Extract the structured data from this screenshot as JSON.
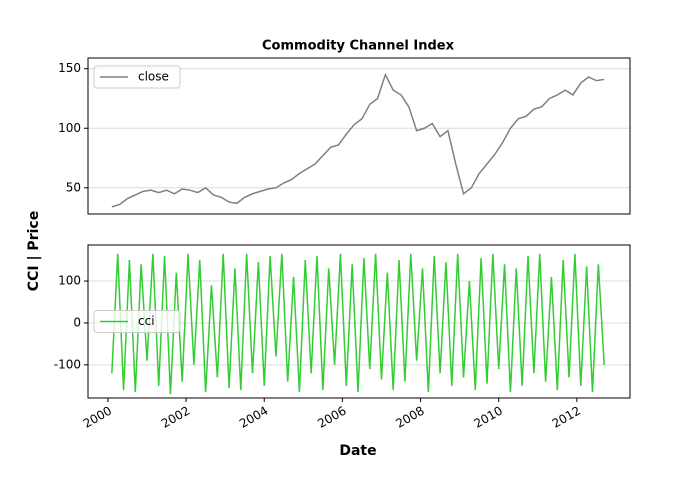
{
  "chart_data": [
    {
      "type": "line",
      "title": "Commodity Channel Index",
      "ylabel": "CCI | Price",
      "x": [
        2000.1,
        2000.3,
        2000.5,
        2000.7,
        2000.9,
        2001.1,
        2001.3,
        2001.5,
        2001.7,
        2001.9,
        2002.1,
        2002.3,
        2002.5,
        2002.7,
        2002.9,
        2003.1,
        2003.3,
        2003.5,
        2003.7,
        2003.9,
        2004.1,
        2004.3,
        2004.5,
        2004.7,
        2004.9,
        2005.1,
        2005.3,
        2005.5,
        2005.7,
        2005.9,
        2006.1,
        2006.3,
        2006.5,
        2006.7,
        2006.9,
        2007.1,
        2007.3,
        2007.5,
        2007.7,
        2007.9,
        2008.1,
        2008.3,
        2008.5,
        2008.7,
        2008.9,
        2009.1,
        2009.3,
        2009.5,
        2009.7,
        2009.9,
        2010.1,
        2010.3,
        2010.5,
        2010.7,
        2010.9,
        2011.1,
        2011.3,
        2011.5,
        2011.7,
        2011.9,
        2012.1,
        2012.3,
        2012.5,
        2012.7
      ],
      "series": [
        {
          "name": "close",
          "color": "#808080",
          "values": [
            34,
            36,
            41,
            44,
            47,
            48,
            46,
            48,
            45,
            49,
            48,
            46,
            50,
            44,
            42,
            38,
            37,
            42,
            45,
            47,
            49,
            50,
            54,
            57,
            62,
            66,
            70,
            77,
            84,
            86,
            95,
            103,
            108,
            120,
            125,
            145,
            132,
            128,
            118,
            98,
            100,
            104,
            93,
            98,
            70,
            45,
            50,
            62,
            70,
            78,
            88,
            100,
            108,
            110,
            116,
            118,
            125,
            128,
            132,
            128,
            138,
            143,
            140,
            141
          ]
        }
      ],
      "xlim": [
        1999.49,
        2013.36
      ],
      "ylim": [
        28,
        159
      ],
      "yticks": [
        50,
        100,
        150
      ],
      "grid": true,
      "legend": "upper left"
    },
    {
      "type": "line",
      "xlabel": "Date",
      "x": [
        2000.1,
        2000.25,
        2000.4,
        2000.55,
        2000.7,
        2000.85,
        2001.0,
        2001.15,
        2001.3,
        2001.45,
        2001.6,
        2001.75,
        2001.9,
        2002.05,
        2002.2,
        2002.35,
        2002.5,
        2002.65,
        2002.8,
        2002.95,
        2003.1,
        2003.25,
        2003.4,
        2003.55,
        2003.7,
        2003.85,
        2004.0,
        2004.15,
        2004.3,
        2004.45,
        2004.6,
        2004.75,
        2004.9,
        2005.05,
        2005.2,
        2005.35,
        2005.5,
        2005.65,
        2005.8,
        2005.95,
        2006.1,
        2006.25,
        2006.4,
        2006.55,
        2006.7,
        2006.85,
        2007.0,
        2007.15,
        2007.3,
        2007.45,
        2007.6,
        2007.75,
        2007.9,
        2008.05,
        2008.2,
        2008.35,
        2008.5,
        2008.65,
        2008.8,
        2008.95,
        2009.1,
        2009.25,
        2009.4,
        2009.55,
        2009.7,
        2009.85,
        2010.0,
        2010.15,
        2010.3,
        2010.45,
        2010.6,
        2010.75,
        2010.9,
        2011.05,
        2011.2,
        2011.35,
        2011.5,
        2011.65,
        2011.8,
        2011.95,
        2012.1,
        2012.25,
        2012.4,
        2012.55,
        2012.7
      ],
      "series": [
        {
          "name": "cci",
          "color": "#32cd32",
          "values": [
            -120,
            165,
            -160,
            150,
            -165,
            140,
            -90,
            165,
            -150,
            160,
            -170,
            120,
            -140,
            165,
            -100,
            150,
            -165,
            90,
            -130,
            165,
            -155,
            130,
            -160,
            165,
            -120,
            145,
            -150,
            160,
            -80,
            165,
            -140,
            110,
            -165,
            150,
            -120,
            160,
            -160,
            130,
            -100,
            165,
            -150,
            140,
            -165,
            155,
            -110,
            165,
            -135,
            120,
            -160,
            150,
            -140,
            165,
            -90,
            130,
            -165,
            160,
            -120,
            145,
            -150,
            165,
            -130,
            100,
            -160,
            155,
            -145,
            165,
            -110,
            140,
            -165,
            130,
            -150,
            160,
            -120,
            165,
            -140,
            110,
            -160,
            150,
            -130,
            165,
            -150,
            135,
            -165,
            140,
            -100
          ]
        }
      ],
      "xlim": [
        1999.49,
        2013.36
      ],
      "ylim": [
        -179,
        186
      ],
      "yticks": [
        -100,
        0,
        100
      ],
      "xticks": [
        2000,
        2002,
        2004,
        2006,
        2008,
        2010,
        2012
      ],
      "grid": true,
      "legend": "center left"
    }
  ]
}
